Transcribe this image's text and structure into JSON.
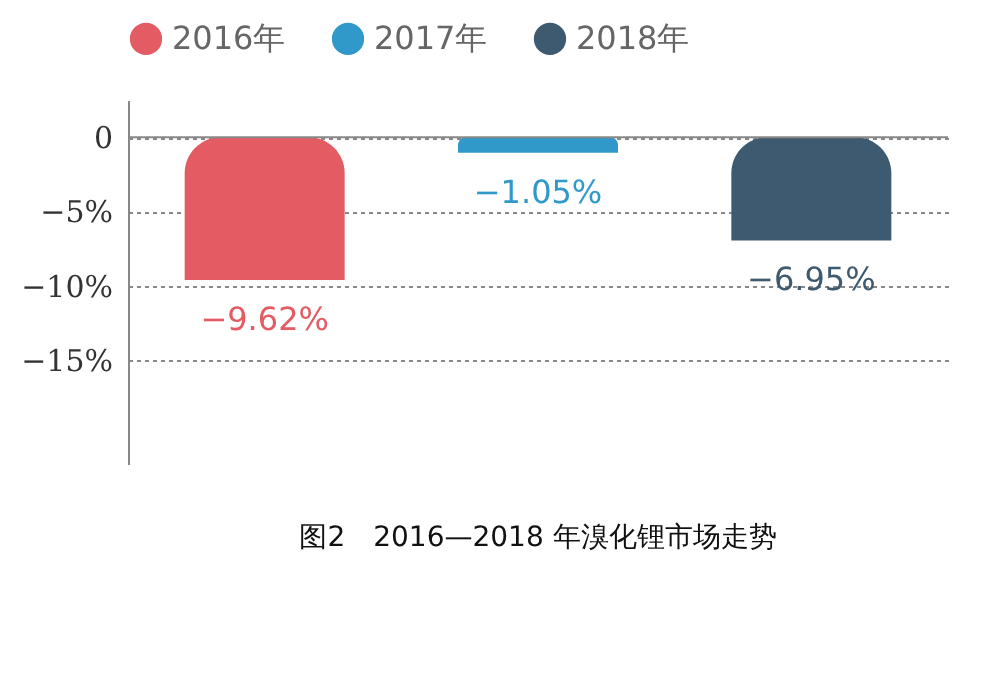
{
  "chart_data": {
    "type": "bar",
    "title": "图2　2016—2018 年溴化锂市场走势",
    "categories": [
      null,
      null,
      null
    ],
    "series": [
      {
        "name": "2016年",
        "color": "#e35b63",
        "values": [
          -9.62,
          null,
          null
        ],
        "value_labels": [
          "−9.62%",
          null,
          null
        ]
      },
      {
        "name": "2017年",
        "color": "#3199c9",
        "values": [
          null,
          -1.05,
          null
        ],
        "value_labels": [
          null,
          "−1.05%",
          null
        ]
      },
      {
        "name": "2018年",
        "color": "#3e5a70",
        "values": [
          null,
          null,
          -6.95
        ],
        "value_labels": [
          null,
          null,
          "−6.95%"
        ]
      }
    ],
    "ylim": [
      -22,
      2.5
    ],
    "yticks": [
      0,
      {
        "value": -5,
        "label": "−5%"
      },
      {
        "value": -10,
        "label": "−10%"
      },
      {
        "value": -15,
        "label": "−15%"
      }
    ],
    "grid": "y",
    "legend": "top left",
    "tick_labels": "y"
  }
}
